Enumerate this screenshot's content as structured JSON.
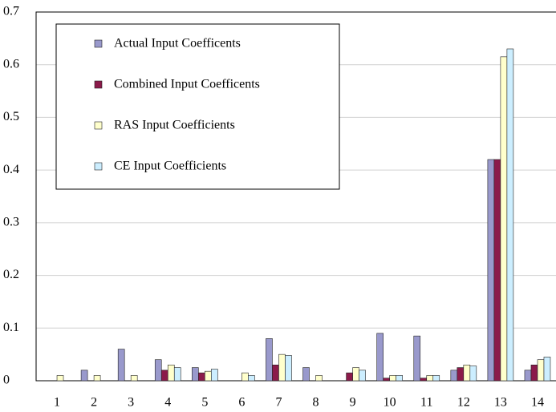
{
  "chart_data": {
    "type": "bar",
    "categories": [
      "1",
      "2",
      "3",
      "4",
      "5",
      "6",
      "7",
      "8",
      "9",
      "10",
      "11",
      "12",
      "13",
      "14"
    ],
    "series": [
      {
        "name": "Actual Input Coefficents",
        "color": "#9999cc",
        "values": [
          0,
          0.02,
          0.06,
          0.04,
          0.025,
          0,
          0.08,
          0.025,
          0,
          0.09,
          0.085,
          0.02,
          0.42,
          0.02
        ]
      },
      {
        "name": "Combined Input Coefficents",
        "color": "#8b1a4a",
        "values": [
          0,
          0,
          0,
          0.02,
          0.015,
          0,
          0.03,
          0,
          0.015,
          0.005,
          0.005,
          0.025,
          0.42,
          0.03
        ]
      },
      {
        "name": "RAS Input Coefficients",
        "color": "#ffffcc",
        "values": [
          0.01,
          0.01,
          0.01,
          0.03,
          0.018,
          0.015,
          0.05,
          0.01,
          0.025,
          0.01,
          0.01,
          0.03,
          0.615,
          0.04
        ]
      },
      {
        "name": "CE Input Coefficients",
        "color": "#cceeff",
        "values": [
          0,
          0,
          0,
          0.025,
          0.022,
          0.01,
          0.048,
          0,
          0.02,
          0.01,
          0.01,
          0.028,
          0.63,
          0.045
        ]
      }
    ],
    "ylim": [
      0,
      0.7
    ],
    "yticks": [
      0,
      0.1,
      0.2,
      0.3,
      0.4,
      0.5,
      0.6,
      0.7
    ],
    "grid": true,
    "legend": "upper left"
  }
}
